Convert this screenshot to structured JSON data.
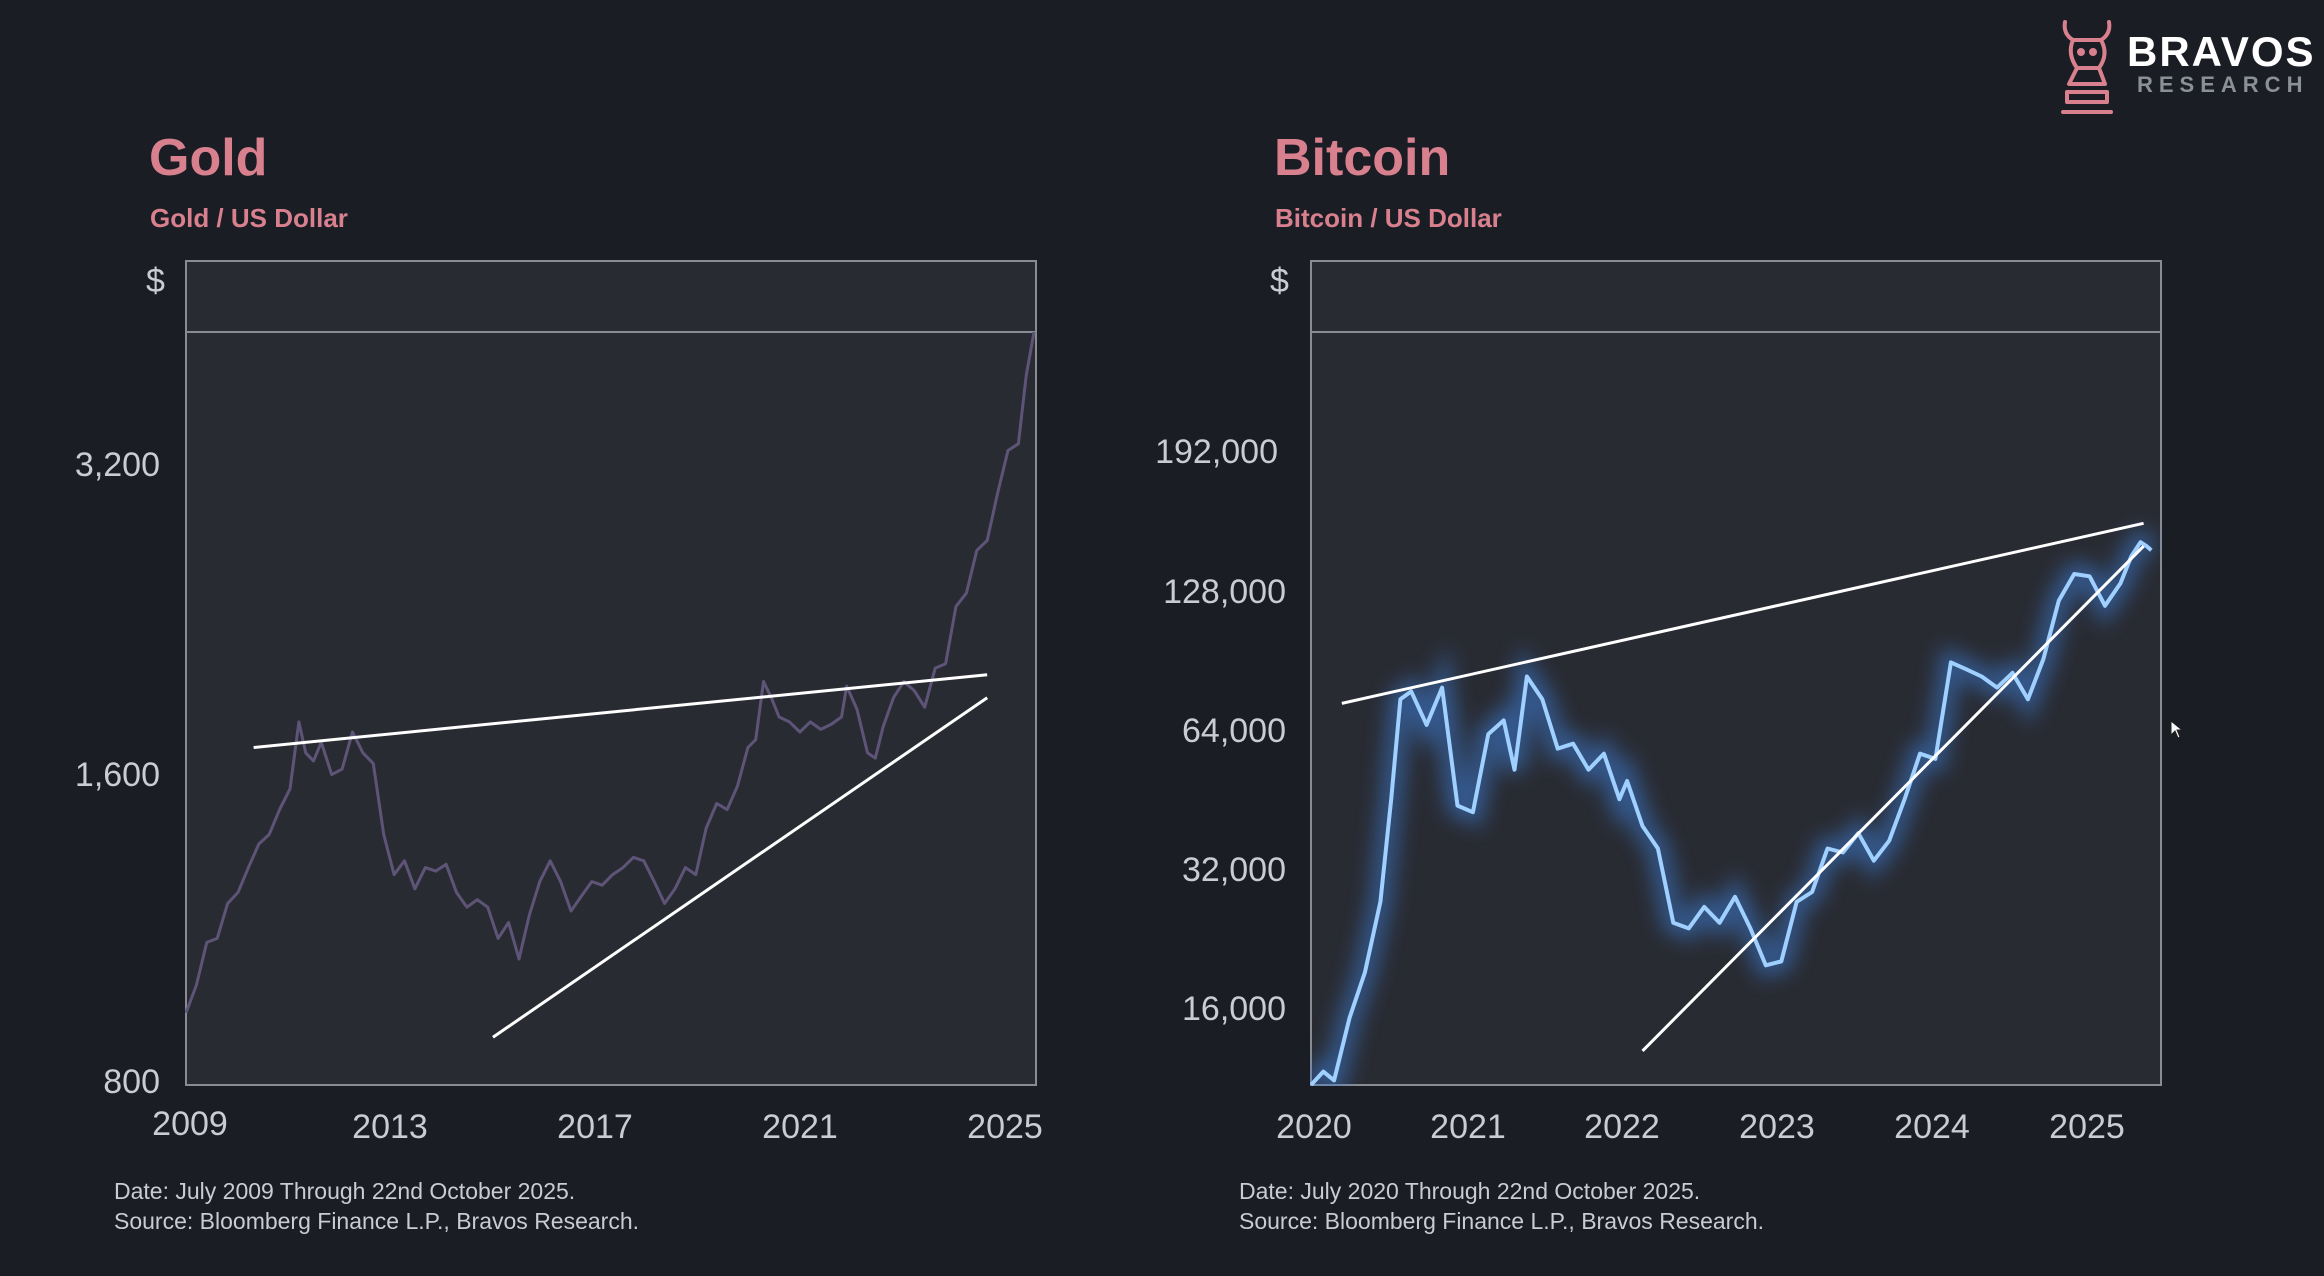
{
  "brand": {
    "name": "BRAVOS",
    "subtitle": "RESEARCH",
    "logo_icon": "bull-knight-logo-icon",
    "color": "#d9808f"
  },
  "colors": {
    "background": "#1b1d24",
    "plot_background": "#292b32",
    "title": "#d9808f",
    "tick_text": "#c9ccd2",
    "gold_line": "#5e5478",
    "bitcoin_line": "#9fd0ff",
    "bitcoin_glow": "#3d7fd9",
    "trend_line": "#ffffff"
  },
  "chart_data": [
    {
      "id": "gold",
      "type": "line",
      "title": "Gold",
      "subtitle": "Gold / US Dollar",
      "unit_label": "$",
      "y_scale": "log",
      "ylim": [
        800,
        4300
      ],
      "xlim": [
        2009.5,
        2025.8
      ],
      "y_ticks": [
        {
          "value": 800,
          "label": "800"
        },
        {
          "value": 1600,
          "label": "1,600"
        },
        {
          "value": 3200,
          "label": "3,200"
        }
      ],
      "x_ticks": [
        {
          "value": 2009.5,
          "label": "2009"
        },
        {
          "value": 2013.5,
          "label": "2013"
        },
        {
          "value": 2017.5,
          "label": "2017"
        },
        {
          "value": 2021.5,
          "label": "2021"
        },
        {
          "value": 2025.5,
          "label": "2025"
        }
      ],
      "series": [
        {
          "x": [
            2009.5,
            2009.7,
            2009.9,
            2010.1,
            2010.3,
            2010.5,
            2010.7,
            2010.9,
            2011.1,
            2011.3,
            2011.5,
            2011.67,
            2011.8,
            2011.95,
            2012.1,
            2012.3,
            2012.5,
            2012.7,
            2012.9,
            2013.1,
            2013.3,
            2013.5,
            2013.7,
            2013.9,
            2014.1,
            2014.3,
            2014.5,
            2014.7,
            2014.9,
            2015.1,
            2015.3,
            2015.5,
            2015.7,
            2015.9,
            2016.1,
            2016.3,
            2016.5,
            2016.7,
            2016.9,
            2017.1,
            2017.3,
            2017.5,
            2017.7,
            2017.9,
            2018.1,
            2018.3,
            2018.5,
            2018.7,
            2018.9,
            2019.1,
            2019.3,
            2019.5,
            2019.7,
            2019.9,
            2020.1,
            2020.3,
            2020.45,
            2020.6,
            2020.75,
            2020.9,
            2021.1,
            2021.3,
            2021.5,
            2021.7,
            2021.9,
            2022.1,
            2022.2,
            2022.4,
            2022.6,
            2022.75,
            2022.9,
            2023.1,
            2023.3,
            2023.5,
            2023.7,
            2023.9,
            2024.1,
            2024.3,
            2024.5,
            2024.7,
            2024.9,
            2025.1,
            2025.3,
            2025.5,
            2025.65,
            2025.8
          ],
          "y": [
            940,
            1000,
            1100,
            1110,
            1200,
            1230,
            1300,
            1370,
            1400,
            1480,
            1550,
            1800,
            1680,
            1650,
            1720,
            1600,
            1620,
            1760,
            1680,
            1640,
            1400,
            1280,
            1320,
            1240,
            1300,
            1290,
            1310,
            1230,
            1190,
            1210,
            1190,
            1110,
            1150,
            1060,
            1170,
            1260,
            1320,
            1260,
            1180,
            1220,
            1260,
            1250,
            1280,
            1300,
            1330,
            1320,
            1260,
            1200,
            1240,
            1300,
            1280,
            1420,
            1500,
            1480,
            1560,
            1700,
            1730,
            1970,
            1900,
            1820,
            1800,
            1760,
            1800,
            1770,
            1790,
            1820,
            1950,
            1850,
            1680,
            1660,
            1780,
            1900,
            1970,
            1930,
            1860,
            2030,
            2050,
            2330,
            2400,
            2640,
            2700,
            3000,
            3300,
            3350,
            3900,
            4300
          ],
          "color": "#5e5478"
        }
      ],
      "trendlines": [
        {
          "points": [
            [
              2010.8,
              1700
            ],
            [
              2024.9,
              2000
            ]
          ]
        },
        {
          "points": [
            [
              2015.4,
              890
            ],
            [
              2024.9,
              1900
            ]
          ]
        }
      ],
      "footnote": [
        "Date: July 2009 Through 22nd October 2025.",
        "Source: Bloomberg Finance L.P., Bravos Research."
      ]
    },
    {
      "id": "bitcoin",
      "type": "line",
      "title": "Bitcoin",
      "subtitle": "Bitcoin / US Dollar",
      "unit_label": "$",
      "y_scale": "log",
      "ylim": [
        9600,
        290000
      ],
      "xlim": [
        2020.0,
        2025.5
      ],
      "y_ticks": [
        {
          "value": 16000,
          "label": "16,000"
        },
        {
          "value": 32000,
          "label": "32,000"
        },
        {
          "value": 64000,
          "label": "64,000"
        },
        {
          "value": 128000,
          "label": "128,000"
        },
        {
          "value": 192000,
          "label": "192,000"
        }
      ],
      "x_ticks": [
        {
          "value": 2020.0,
          "label": "2020"
        },
        {
          "value": 2021.0,
          "label": "2021"
        },
        {
          "value": 2022.0,
          "label": "2022"
        },
        {
          "value": 2023.0,
          "label": "2023"
        },
        {
          "value": 2024.0,
          "label": "2024"
        },
        {
          "value": 2025.0,
          "label": "2025"
        }
      ],
      "series": [
        {
          "x": [
            2020.0,
            2020.08,
            2020.15,
            2020.25,
            2020.35,
            2020.45,
            2020.52,
            2020.58,
            2020.65,
            2020.75,
            2020.85,
            2020.95,
            2021.05,
            2021.15,
            2021.25,
            2021.32,
            2021.4,
            2021.5,
            2021.6,
            2021.7,
            2021.8,
            2021.9,
            2022.0,
            2022.05,
            2022.15,
            2022.25,
            2022.35,
            2022.45,
            2022.55,
            2022.65,
            2022.75,
            2022.85,
            2022.95,
            2023.05,
            2023.15,
            2023.25,
            2023.35,
            2023.45,
            2023.55,
            2023.65,
            2023.75,
            2023.85,
            2023.95,
            2024.05,
            2024.15,
            2024.25,
            2024.35,
            2024.45,
            2024.55,
            2024.65,
            2024.75,
            2024.85,
            2024.95,
            2025.05,
            2025.15,
            2025.25,
            2025.32,
            2025.38,
            2025.42,
            2025.45
          ],
          "y": [
            9600,
            10200,
            9800,
            13000,
            16000,
            22000,
            35000,
            55000,
            57000,
            49000,
            58000,
            34000,
            33000,
            47000,
            50000,
            40000,
            61000,
            55000,
            44000,
            45000,
            40000,
            43000,
            35000,
            38000,
            31000,
            28000,
            20000,
            19500,
            21500,
            20000,
            22500,
            19500,
            16500,
            16800,
            22000,
            23000,
            28000,
            27500,
            30000,
            26500,
            29000,
            35000,
            43000,
            42000,
            65000,
            63000,
            61000,
            58000,
            62000,
            55000,
            66000,
            86000,
            97000,
            96000,
            84000,
            93000,
            105000,
            112000,
            110000,
            108000
          ],
          "color": "#9fd0ff"
        }
      ],
      "trendlines": [
        {
          "points": [
            [
              2020.2,
              54000
            ],
            [
              2025.4,
              122000
            ]
          ]
        },
        {
          "points": [
            [
              2022.15,
              11200
            ],
            [
              2025.4,
              110000
            ]
          ]
        }
      ],
      "footnote": [
        "Date: July 2020 Through 22nd October 2025.",
        "Source: Bloomberg Finance L.P., Bravos Research."
      ]
    }
  ]
}
